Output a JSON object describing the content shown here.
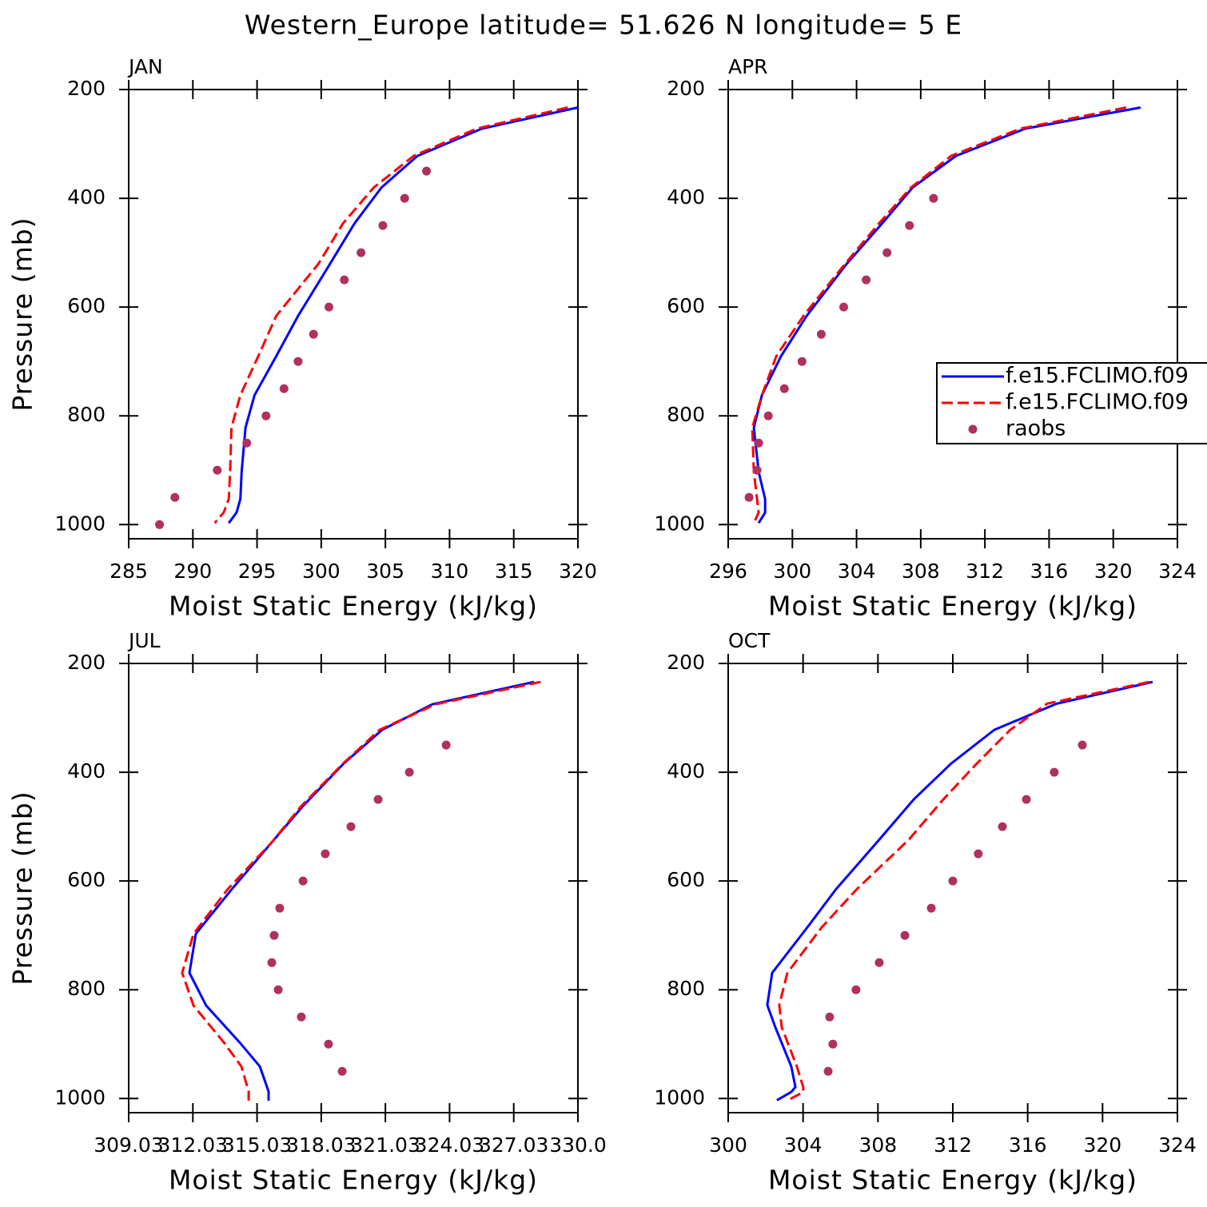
{
  "title": "Western_Europe  latitude= 51.626 N longitude= 5 E",
  "chart_data": [
    {
      "type": "line",
      "title": "JAN",
      "xlabel": "Moist Static Energy (kJ/kg)",
      "ylabel": "Pressure (mb)",
      "xlim": [
        285,
        320
      ],
      "xticks": [
        285,
        290,
        295,
        300,
        305,
        310,
        315,
        320
      ],
      "ylim": [
        1026,
        200
      ],
      "yticks": [
        200,
        400,
        600,
        800,
        1000
      ],
      "series": [
        {
          "name": "f.e15.FCLIMO.f09",
          "color": "#0000ff",
          "style": "solid",
          "x": [
            320.0,
            312.5,
            307.5,
            304.7,
            302.6,
            300.7,
            298.2,
            296.5,
            294.8,
            294.1,
            293.8,
            293.7,
            293.4,
            292.8
          ],
          "y": [
            233,
            272,
            322,
            380,
            446,
            520,
            616,
            690,
            762,
            822,
            903,
            953,
            978,
            997
          ]
        },
        {
          "name": "f.e15.FCLIMO.f09",
          "color": "#ff0000",
          "style": "dashed",
          "x": [
            319.2,
            312.1,
            307.2,
            304.1,
            301.7,
            299.8,
            296.5,
            295.1,
            293.7,
            293.0,
            292.9,
            292.8,
            292.4,
            291.7
          ],
          "y": [
            233,
            272,
            322,
            380,
            446,
            520,
            616,
            690,
            762,
            822,
            903,
            953,
            978,
            997
          ]
        },
        {
          "name": "raobs",
          "color": "#b03060",
          "style": "markers",
          "x": [
            308.2,
            306.5,
            304.8,
            303.1,
            301.8,
            300.6,
            299.4,
            298.2,
            297.1,
            295.7,
            294.2,
            291.9,
            288.6,
            287.4
          ],
          "y": [
            350,
            400,
            450,
            500,
            550,
            600,
            650,
            700,
            750,
            800,
            850,
            900,
            950,
            1000
          ]
        }
      ]
    },
    {
      "type": "line",
      "title": "APR",
      "xlabel": "Moist Static Energy (kJ/kg)",
      "xlim": [
        296,
        324
      ],
      "xticks": [
        296,
        300,
        304,
        308,
        312,
        316,
        320,
        324
      ],
      "ylim": [
        1026,
        200
      ],
      "yticks": [
        200,
        400,
        600,
        800,
        1000
      ],
      "legend": "right",
      "series": [
        {
          "name": "f.e15.FCLIMO.f09",
          "color": "#0000ff",
          "style": "solid",
          "x": [
            321.7,
            314.5,
            310.2,
            307.5,
            305.6,
            303.4,
            300.9,
            299.3,
            298.1,
            297.6,
            297.9,
            298.3,
            298.3,
            297.9
          ],
          "y": [
            233,
            272,
            322,
            380,
            446,
            520,
            616,
            690,
            762,
            822,
            903,
            953,
            978,
            997
          ]
        },
        {
          "name": "f.e15.FCLIMO.f09",
          "color": "#ff0000",
          "style": "dashed",
          "x": [
            320.8,
            314.2,
            309.9,
            307.4,
            305.4,
            303.3,
            300.7,
            299.0,
            298.1,
            297.5,
            297.6,
            297.8,
            297.9,
            297.6
          ],
          "y": [
            233,
            272,
            322,
            380,
            446,
            520,
            616,
            690,
            762,
            822,
            903,
            953,
            978,
            997
          ]
        },
        {
          "name": "raobs",
          "color": "#b03060",
          "style": "markers",
          "x": [
            308.8,
            307.3,
            305.9,
            304.6,
            303.2,
            301.8,
            300.6,
            299.5,
            298.5,
            297.9,
            297.8,
            297.3
          ],
          "y": [
            400,
            450,
            500,
            550,
            600,
            650,
            700,
            750,
            800,
            850,
            900,
            950
          ]
        }
      ]
    },
    {
      "type": "line",
      "title": "JUL",
      "xlabel": "Moist Static Energy (kJ/kg)",
      "ylabel": "Pressure (mb)",
      "xlim": [
        309.03,
        330.03
      ],
      "xticks": [
        309.03,
        312.03,
        315.03,
        318.03,
        321.03,
        324.03,
        327.03,
        {
          "value": 330.03,
          "label": "330.0"
        }
      ],
      "ylim": [
        1026,
        200
      ],
      "yticks": [
        200,
        400,
        600,
        800,
        1000
      ],
      "series": [
        {
          "name": "f.e15.FCLIMO.f09",
          "color": "#0000ff",
          "style": "solid",
          "x": [
            327.98,
            323.23,
            320.88,
            319.08,
            317.18,
            315.72,
            313.85,
            312.17,
            311.87,
            312.65,
            314.22,
            315.16,
            315.57,
            315.57
          ],
          "y": [
            234,
            275,
            322,
            384,
            462,
            529,
            615,
            697,
            769,
            829,
            897,
            941,
            987,
            1004
          ]
        },
        {
          "name": "f.e15.FCLIMO.f09",
          "color": "#ff0000",
          "style": "dashed",
          "x": [
            328.28,
            323.38,
            320.76,
            319.05,
            317.1,
            315.72,
            313.66,
            312.06,
            311.53,
            312.06,
            313.48,
            314.3,
            314.64,
            314.64
          ],
          "y": [
            234,
            275,
            322,
            384,
            462,
            529,
            615,
            697,
            769,
            829,
            897,
            941,
            987,
            1004
          ]
        },
        {
          "name": "raobs",
          "color": "#b03060",
          "style": "markers",
          "x": [
            323.87,
            322.15,
            320.69,
            319.42,
            318.22,
            317.18,
            316.09,
            315.83,
            315.72,
            316.02,
            317.1,
            318.37,
            319.01
          ],
          "y": [
            350,
            400,
            450,
            500,
            550,
            600,
            650,
            700,
            750,
            800,
            850,
            900,
            950
          ]
        }
      ]
    },
    {
      "type": "line",
      "title": "OCT",
      "xlabel": "Moist Static Energy (kJ/kg)",
      "xlim": [
        300,
        324
      ],
      "xticks": [
        300,
        304,
        308,
        312,
        316,
        320,
        324
      ],
      "ylim": [
        1026,
        200
      ],
      "yticks": [
        200,
        400,
        600,
        800,
        1000
      ],
      "series": [
        {
          "name": "f.e15.FCLIMO.f09",
          "color": "#0000ff",
          "style": "solid",
          "x": [
            322.67,
            317.55,
            314.22,
            311.91,
            309.91,
            308.07,
            305.76,
            304.23,
            302.35,
            302.09,
            302.52,
            303.37,
            303.59,
            303.37,
            302.6
          ],
          "y": [
            234,
            274,
            322,
            384,
            450,
            524,
            615,
            685,
            769,
            828,
            869,
            941,
            979,
            988,
            1003
          ]
        },
        {
          "name": "f.e15.FCLIMO.f09",
          "color": "#ff0000",
          "style": "dashed",
          "x": [
            322.5,
            317.04,
            315.07,
            313.28,
            311.49,
            309.65,
            306.87,
            305.0,
            303.16,
            302.73,
            302.86,
            303.67,
            304.01,
            304.01,
            303.2
          ],
          "y": [
            234,
            274,
            322,
            384,
            450,
            524,
            615,
            685,
            769,
            828,
            869,
            941,
            979,
            988,
            1003
          ]
        },
        {
          "name": "raobs",
          "color": "#b03060",
          "style": "markers",
          "x": [
            318.92,
            317.42,
            315.93,
            314.65,
            313.36,
            312.0,
            310.85,
            309.44,
            308.07,
            306.83,
            305.42,
            305.59,
            305.34
          ],
          "y": [
            350,
            400,
            450,
            500,
            550,
            600,
            650,
            700,
            750,
            800,
            850,
            900,
            950
          ]
        }
      ]
    }
  ]
}
